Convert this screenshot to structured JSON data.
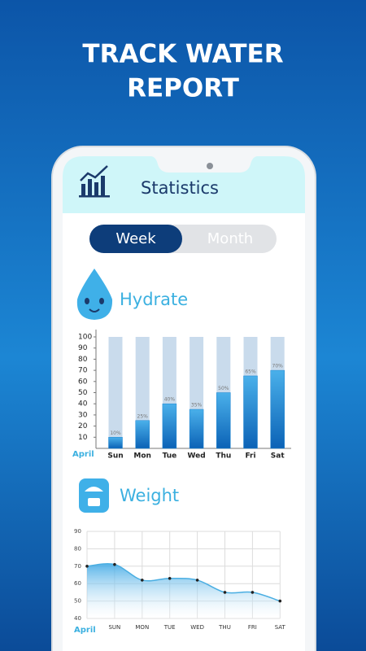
{
  "headline": [
    "TRACK WATER",
    "REPORT"
  ],
  "header": {
    "title": "Statistics"
  },
  "toggle": {
    "options": [
      "Week",
      "Month"
    ],
    "selected": 0
  },
  "hydrate": {
    "title": "Hydrate",
    "chart": {
      "type": "bar",
      "categories": [
        "Sun",
        "Mon",
        "Tue",
        "Wed",
        "Thu",
        "Fri",
        "Sat"
      ],
      "values": [
        10,
        25,
        40,
        35,
        50,
        65,
        70
      ],
      "value_labels": [
        "10%",
        "25%",
        "40%",
        "35%",
        "50%",
        "65%",
        "70%"
      ],
      "x_label": "April",
      "ylim": [
        0,
        100
      ],
      "yticks": [
        10,
        20,
        30,
        40,
        50,
        60,
        70,
        80,
        90,
        100
      ],
      "color": "#1f86d2"
    }
  },
  "weight": {
    "title": "Weight",
    "chart": {
      "type": "line",
      "categories": [
        null,
        "SUN",
        "MON",
        "TUE",
        "WED",
        "THU",
        "FRI",
        "SAT"
      ],
      "values": [
        70,
        71,
        62,
        63,
        62,
        55,
        55,
        50
      ],
      "x_label": "April",
      "ylim": [
        40,
        90
      ],
      "yticks": [
        40,
        50,
        60,
        70,
        80,
        90
      ],
      "grid": true,
      "color": "#4aaee2"
    }
  }
}
